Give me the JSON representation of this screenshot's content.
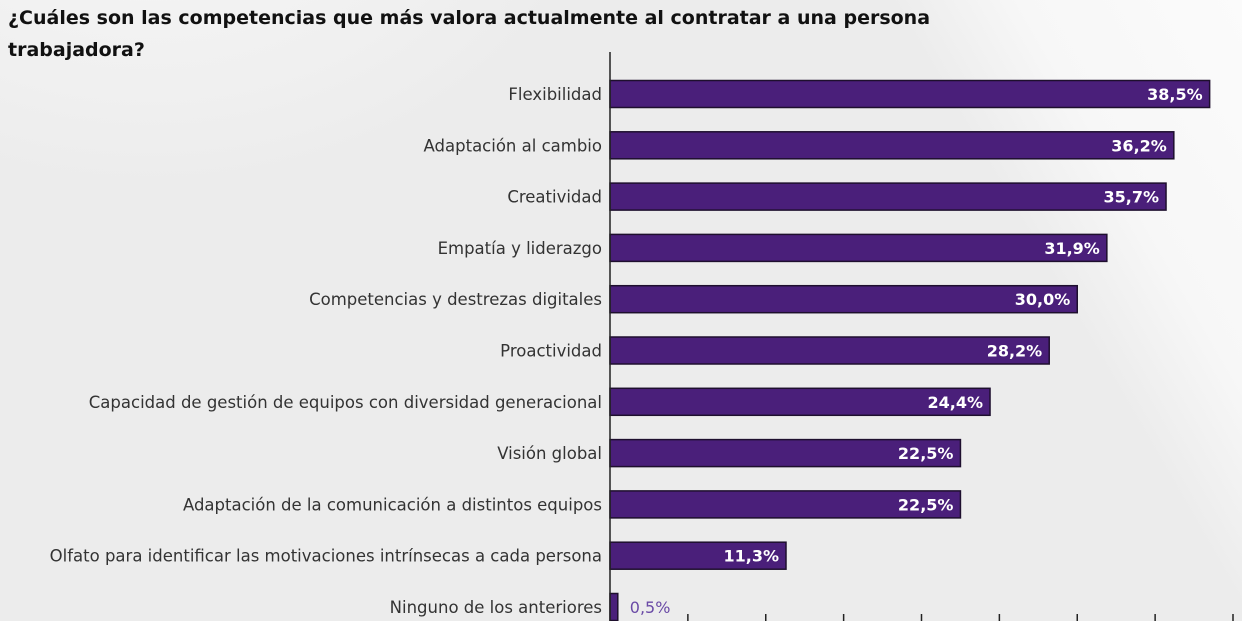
{
  "chart_data": {
    "type": "bar",
    "orientation": "horizontal",
    "title": "¿Cuáles son las competencias que más valora actualmente al contratar a una persona trabajadora?",
    "categories": [
      "Flexibilidad",
      "Adaptación al cambio",
      "Creatividad",
      "Empatía y liderazgo",
      "Competencias y destrezas digitales",
      "Proactividad",
      "Capacidad de gestión de equipos con diversidad generacional",
      "Visión global",
      "Adaptación de la comunicación a distintos equipos",
      "Olfato para identificar las motivaciones intrínsecas a cada persona",
      "Ninguno de los anteriores"
    ],
    "values": [
      38.5,
      36.2,
      35.7,
      31.9,
      30.0,
      28.2,
      24.4,
      22.5,
      22.5,
      11.3,
      0.5
    ],
    "data_labels": [
      "38,5%",
      "36,2%",
      "35,7%",
      "31,9%",
      "30,0%",
      "28,2%",
      "24,4%",
      "22,5%",
      "22,5%",
      "11,3%",
      "0,5%"
    ],
    "xlim": [
      0,
      40
    ],
    "x_tick_step": 5,
    "grid": false,
    "legend": "none",
    "colors": {
      "bar": "#4a1f7a",
      "bar_border": "#1e0f2e",
      "label_inside": "#ffffff",
      "label_outside": "#6a4aa6"
    }
  }
}
